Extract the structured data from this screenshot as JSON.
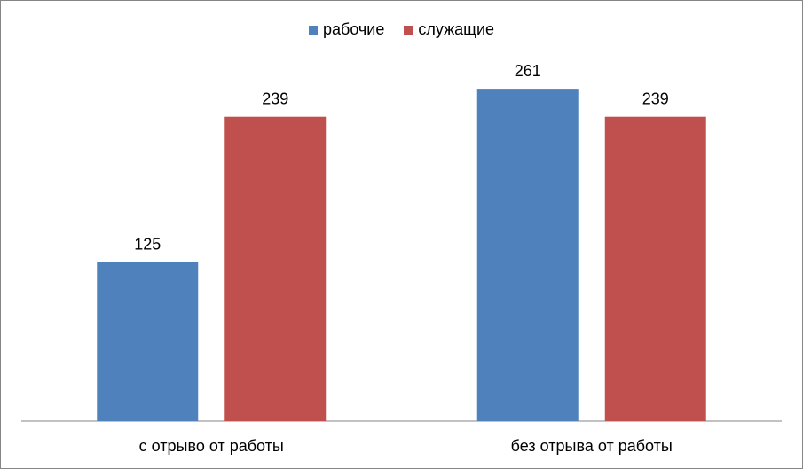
{
  "chart_data": {
    "type": "bar",
    "categories": [
      "с отрыво от работы",
      "без отрыва от работы"
    ],
    "series": [
      {
        "name": "рабочие",
        "values": [
          125,
          261
        ],
        "color": "#4F81BD"
      },
      {
        "name": "служащие",
        "values": [
          239,
          239
        ],
        "color": "#C0504D"
      }
    ],
    "ylim": [
      0,
      330
    ],
    "data_labels": true,
    "grid": false,
    "legend_position": "top"
  }
}
